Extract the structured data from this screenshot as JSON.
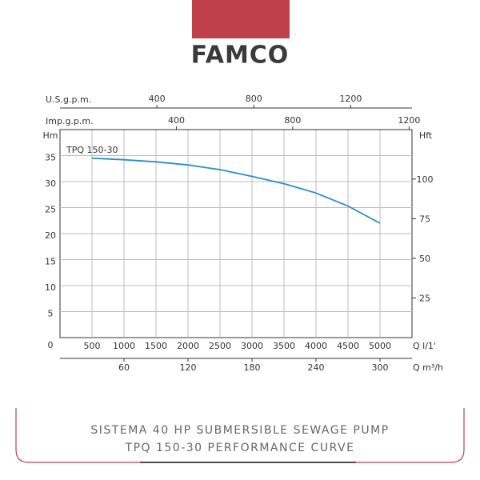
{
  "logo": "FAMCO",
  "caption": [
    "SISTEMA 40 HP SUBMERSIBLE SEWAGE PUMP",
    "TPQ 150-30 PERFORMANCE CURVE"
  ],
  "chart_data": {
    "type": "line",
    "x": [
      500,
      1000,
      1500,
      2000,
      2500,
      3000,
      3500,
      4000,
      4500,
      5000
    ],
    "series": [
      {
        "name": "TPQ 150-30",
        "color": "#2b8fc6",
        "values": [
          34.5,
          34.2,
          33.8,
          33.2,
          32.3,
          31,
          29.6,
          27.8,
          25.3,
          22
        ]
      }
    ],
    "xlabel": "Q l/1'",
    "xlim": [
      0,
      5500
    ],
    "xticks": [
      500,
      1000,
      1500,
      2000,
      2500,
      3000,
      3500,
      4000,
      4500,
      5000
    ],
    "ylabel": "Hm",
    "ylim": [
      0,
      40
    ],
    "yticks": [
      0,
      5,
      10,
      15,
      20,
      25,
      30,
      35
    ],
    "y2label": "Hft",
    "y2lim": [
      0,
      131.2
    ],
    "y2ticks": [
      25,
      50,
      75,
      100
    ],
    "x2_axes": [
      {
        "label": "U.S.g.p.m.",
        "lim": [
          0,
          1453
        ],
        "ticks": [
          400,
          800,
          1200
        ],
        "position": "top"
      },
      {
        "label": "Imp.g.p.m.",
        "lim": [
          0,
          1210
        ],
        "ticks": [
          400,
          800,
          1200
        ],
        "position": "top"
      },
      {
        "label": "Q m³/h",
        "lim": [
          0,
          330
        ],
        "ticks": [
          60,
          120,
          180,
          240,
          300
        ],
        "position": "bottom"
      }
    ],
    "grid": true
  }
}
